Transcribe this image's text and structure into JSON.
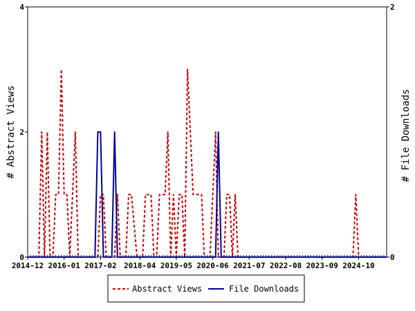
{
  "chart_data": {
    "type": "line",
    "xlabel": "",
    "ylabel_left": "# Abstract Views",
    "ylabel_right": "# File Downloads",
    "ylim_left": [
      0,
      4
    ],
    "ylim_right": [
      0,
      2
    ],
    "yticks_left": [
      "0",
      "2",
      "4"
    ],
    "yticks_right": [
      "0",
      "2"
    ],
    "xlim": [
      "2014-12",
      "2025-08"
    ],
    "xticks": [
      "2014-12",
      "2016-01",
      "2017-02",
      "2018-04",
      "2019-05",
      "2020-06",
      "2021-07",
      "2022-08",
      "2023-09",
      "2024-10"
    ],
    "grid": false,
    "legend_position": "bottom",
    "series": [
      {
        "name": "Abstract Views",
        "axis": "left",
        "color": "#cc0000",
        "style": "dashed",
        "x": [
          "2014-12",
          "2015-04",
          "2015-05",
          "2015-06",
          "2015-07",
          "2015-08",
          "2015-09",
          "2015-10",
          "2015-11",
          "2015-12",
          "2016-01",
          "2016-02",
          "2016-03",
          "2016-04",
          "2016-05",
          "2016-06",
          "2016-07",
          "2016-08",
          "2016-09",
          "2016-10",
          "2016-11",
          "2017-01",
          "2017-02",
          "2017-03",
          "2017-04",
          "2017-05",
          "2017-07",
          "2017-08",
          "2017-09",
          "2017-10",
          "2017-11",
          "2017-12",
          "2018-01",
          "2018-03",
          "2018-04",
          "2018-05",
          "2018-06",
          "2018-07",
          "2018-08",
          "2018-09",
          "2018-10",
          "2018-11",
          "2018-12",
          "2019-01",
          "2019-02",
          "2019-03",
          "2019-04",
          "2019-05",
          "2019-06",
          "2019-07",
          "2019-08",
          "2019-09",
          "2019-11",
          "2019-12",
          "2020-01",
          "2020-02",
          "2020-03",
          "2020-04",
          "2020-05",
          "2020-06",
          "2020-07",
          "2020-08",
          "2020-09",
          "2020-10",
          "2020-11",
          "2020-12",
          "2021-01",
          "2021-02",
          "2021-03",
          "2021-04",
          "2021-05",
          "2021-06",
          "2024-08",
          "2024-09",
          "2024-10",
          "2025-08"
        ],
        "values": [
          0,
          0,
          2,
          0,
          2,
          0,
          0,
          1,
          1,
          3,
          1,
          1,
          0,
          1,
          2,
          0,
          0,
          0,
          0,
          0,
          0,
          0,
          1,
          1,
          0,
          0,
          0,
          1,
          0,
          0,
          0,
          1,
          1,
          0,
          0,
          0,
          1,
          1,
          1,
          0,
          0,
          1,
          1,
          1,
          2,
          0,
          1,
          0,
          1,
          1,
          0,
          3,
          1,
          1,
          1,
          1,
          0,
          0,
          0,
          1,
          2,
          0,
          0,
          0,
          1,
          1,
          0,
          1,
          0,
          0,
          0,
          0,
          0,
          1,
          0,
          0
        ]
      },
      {
        "name": "File Downloads",
        "axis": "right",
        "color": "#000099",
        "style": "solid",
        "x": [
          "2014-12",
          "2016-12",
          "2017-01",
          "2017-02",
          "2017-03",
          "2017-04",
          "2017-06",
          "2017-07",
          "2017-08",
          "2020-07",
          "2020-08",
          "2020-09",
          "2020-10",
          "2025-08"
        ],
        "values": [
          0,
          0,
          1,
          1,
          0,
          0,
          0,
          1,
          0,
          0,
          1,
          0,
          0,
          0
        ]
      }
    ]
  }
}
